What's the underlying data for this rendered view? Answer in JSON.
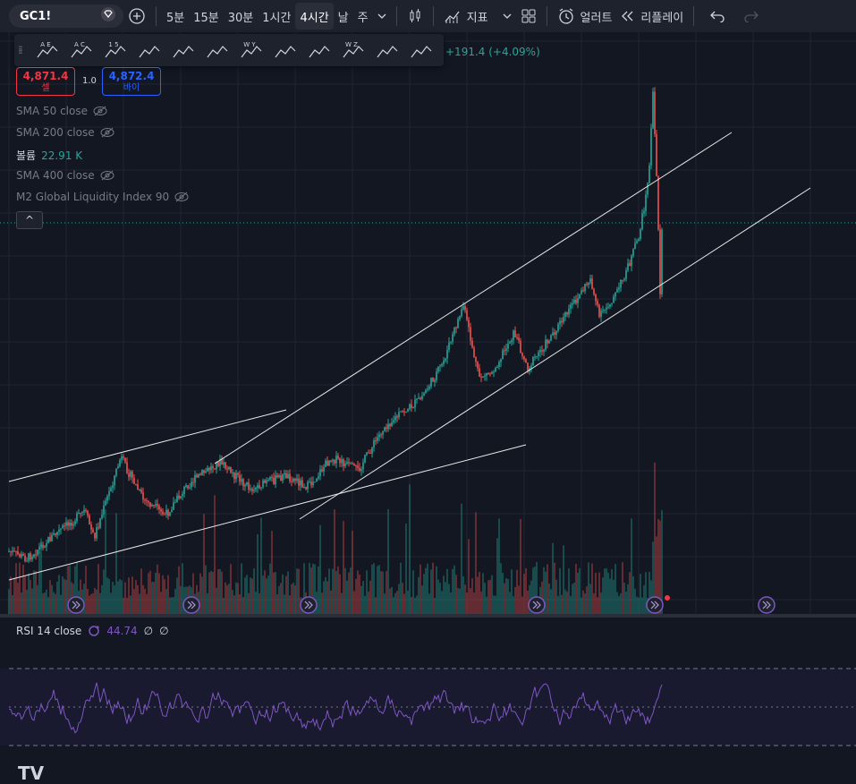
{
  "header": {
    "symbol": "GC1!",
    "intervals": [
      "5분",
      "15분",
      "30분",
      "1시간",
      "4시간",
      "날",
      "주"
    ],
    "active_interval": "4시간",
    "indicators_label": "지표",
    "alerts_label": "얼러트",
    "replay_label": "리플레이"
  },
  "drawing_toolbar": {
    "tools": [
      {
        "icon": "xabcd-pattern-icon",
        "letters": "A E"
      },
      {
        "icon": "abcd-pattern-icon",
        "letters": "A C"
      },
      {
        "icon": "elliott-wave-icon",
        "letters": "1 5"
      },
      {
        "icon": "fib-retracement-icon",
        "letters": ""
      },
      {
        "icon": "fib-fan-icon",
        "letters": ""
      },
      {
        "icon": "trend-line-icon",
        "letters": ""
      },
      {
        "icon": "triangle-pattern-icon",
        "letters": "W Y"
      },
      {
        "icon": "date-range-icon",
        "letters": ""
      },
      {
        "icon": "horizontal-ray-icon",
        "letters": ""
      },
      {
        "icon": "head-shoulders-icon",
        "letters": "W Z"
      },
      {
        "icon": "fib-channel-icon",
        "letters": ""
      },
      {
        "icon": "info-line-icon",
        "letters": ""
      }
    ]
  },
  "price_change": "+191.4 (+4.09%)",
  "trade": {
    "sell_price": "4,871.4",
    "sell_label": "셀",
    "spread": "1.0",
    "buy_price": "4,872.4",
    "buy_label": "바이"
  },
  "indicators": [
    {
      "label": "SMA 50 close",
      "value": "",
      "hidden": true
    },
    {
      "label": "SMA 200 close",
      "value": "",
      "hidden": true
    },
    {
      "label": "볼륨",
      "value": "22.91 K",
      "hidden": false
    },
    {
      "label": "SMA 400 close",
      "value": "",
      "hidden": true
    },
    {
      "label": "M2 Global Liquidity Index 90",
      "value": "",
      "hidden": true
    }
  ],
  "collapse_label": "^",
  "rsi": {
    "label": "RSI 14 close",
    "value": "44.74",
    "extra1": "∅",
    "extra2": "∅"
  },
  "logo": "TV",
  "colors": {
    "up": "#26a69a",
    "down": "#ef5350",
    "rsi": "#7e57c2",
    "bg": "#131722",
    "toolbar": "#1e222d",
    "sell": "#f23645",
    "buy": "#2962ff"
  }
}
